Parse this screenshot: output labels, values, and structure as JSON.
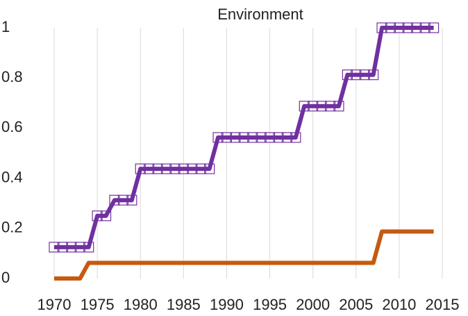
{
  "chart_data": {
    "type": "line",
    "title": "Environment",
    "x": [
      1970,
      1971,
      1972,
      1973,
      1974,
      1975,
      1976,
      1977,
      1978,
      1979,
      1980,
      1981,
      1982,
      1983,
      1984,
      1985,
      1986,
      1987,
      1988,
      1989,
      1990,
      1991,
      1992,
      1993,
      1994,
      1995,
      1996,
      1997,
      1998,
      1999,
      2000,
      2001,
      2002,
      2003,
      2004,
      2005,
      2006,
      2007,
      2008,
      2009,
      2010,
      2011,
      2012,
      2013,
      2014
    ],
    "series": [
      {
        "color": "#7030a0",
        "marker": "square",
        "values": [
          0.125,
          0.125,
          0.125,
          0.125,
          0.125,
          0.25,
          0.25,
          0.3125,
          0.3125,
          0.3125,
          0.4375,
          0.4375,
          0.4375,
          0.4375,
          0.4375,
          0.4375,
          0.4375,
          0.4375,
          0.4375,
          0.5625,
          0.5625,
          0.5625,
          0.5625,
          0.5625,
          0.5625,
          0.5625,
          0.5625,
          0.5625,
          0.5625,
          0.6875,
          0.6875,
          0.6875,
          0.6875,
          0.6875,
          0.8125,
          0.8125,
          0.8125,
          0.8125,
          1,
          1,
          1,
          1,
          1,
          1,
          1
        ]
      },
      {
        "color": "#c55a11",
        "values": [
          0,
          0,
          0,
          0,
          0.0625,
          0.0625,
          0.0625,
          0.0625,
          0.0625,
          0.0625,
          0.0625,
          0.0625,
          0.0625,
          0.0625,
          0.0625,
          0.0625,
          0.0625,
          0.0625,
          0.0625,
          0.0625,
          0.0625,
          0.0625,
          0.0625,
          0.0625,
          0.0625,
          0.0625,
          0.0625,
          0.0625,
          0.0625,
          0.0625,
          0.0625,
          0.0625,
          0.0625,
          0.0625,
          0.0625,
          0.0625,
          0.0625,
          0.0625,
          0.1875,
          0.1875,
          0.1875,
          0.1875,
          0.1875,
          0.1875,
          0.1875
        ]
      }
    ],
    "xlim": [
      1970,
      2015
    ],
    "xticks": [
      1970,
      1975,
      1980,
      1985,
      1990,
      1995,
      2000,
      2005,
      2010,
      2015
    ],
    "ylim": [
      0,
      1
    ],
    "yticks": [
      0,
      0.2,
      0.4,
      0.6,
      0.8,
      1
    ],
    "grid": "x"
  }
}
